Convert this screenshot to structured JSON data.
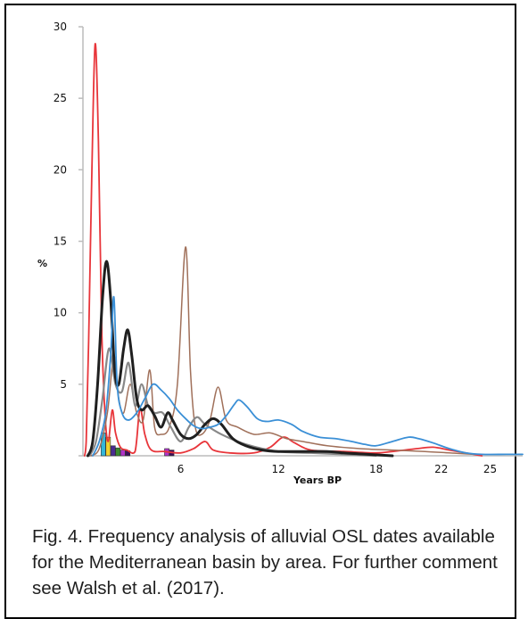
{
  "caption": "Fig. 4. Frequency analysis of alluvial OSL dates available for the Mediterranean basin by area. For further comment see Walsh et al. (2017).",
  "chart_data": {
    "type": "line",
    "xlabel": "Years BP",
    "ylabel": "%",
    "ylim": [
      0,
      30
    ],
    "xlim": [
      0,
      27
    ],
    "y_ticks": [
      0,
      5,
      10,
      15,
      20,
      25,
      30
    ],
    "y_tick_labels": [
      "",
      "5",
      "10",
      "15",
      "20",
      "25",
      "30"
    ],
    "x_ticks": [
      6,
      12,
      18,
      22,
      25
    ],
    "x_tick_labels": [
      "6",
      "12",
      "18",
      "22",
      "25"
    ],
    "grid": false,
    "legend": "none",
    "series": [
      {
        "color": "#e8353a",
        "width": 1.8,
        "points": [
          [
            0.1,
            0
          ],
          [
            0.2,
            1
          ],
          [
            0.35,
            8
          ],
          [
            0.55,
            20
          ],
          [
            0.75,
            28.8
          ],
          [
            0.95,
            22
          ],
          [
            1.15,
            9
          ],
          [
            1.35,
            3
          ],
          [
            1.55,
            1
          ],
          [
            1.8,
            3.2
          ],
          [
            2.0,
            1.6
          ],
          [
            2.3,
            0.6
          ],
          [
            2.7,
            0.4
          ],
          [
            3.2,
            0.3
          ],
          [
            3.5,
            3.3
          ],
          [
            3.8,
            1.5
          ],
          [
            4.2,
            0.4
          ],
          [
            5.0,
            0.3
          ],
          [
            6.0,
            0.2
          ],
          [
            6.8,
            0.5
          ],
          [
            7.5,
            1.0
          ],
          [
            8.0,
            0.4
          ],
          [
            9,
            0.2
          ],
          [
            10.5,
            0.2
          ],
          [
            11.5,
            0.6
          ],
          [
            12.3,
            1.3
          ],
          [
            13,
            0.9
          ],
          [
            14,
            0.4
          ],
          [
            16,
            0.3
          ],
          [
            18,
            0.2
          ],
          [
            19,
            0.3
          ],
          [
            20.5,
            0.5
          ],
          [
            21.5,
            0.6
          ],
          [
            22.5,
            0.4
          ],
          [
            23.5,
            0.2
          ],
          [
            24.5,
            0
          ]
        ]
      },
      {
        "color": "#a0705a",
        "width": 1.5,
        "points": [
          [
            0.5,
            0
          ],
          [
            1,
            0.5
          ],
          [
            1.5,
            3
          ],
          [
            1.9,
            7.0
          ],
          [
            2.2,
            4.0
          ],
          [
            2.5,
            3
          ],
          [
            2.9,
            5
          ],
          [
            3.3,
            3
          ],
          [
            3.7,
            2.5
          ],
          [
            4.1,
            6.0
          ],
          [
            4.4,
            2
          ],
          [
            4.8,
            1.5
          ],
          [
            5.3,
            2
          ],
          [
            5.8,
            5
          ],
          [
            6.3,
            14.6
          ],
          [
            6.6,
            6
          ],
          [
            6.9,
            2
          ],
          [
            7.3,
            1.5
          ],
          [
            7.8,
            2.5
          ],
          [
            8.3,
            4.8
          ],
          [
            8.8,
            2.5
          ],
          [
            9.5,
            2
          ],
          [
            10.5,
            1.5
          ],
          [
            11.5,
            1.6
          ],
          [
            12.5,
            1.2
          ],
          [
            13.5,
            1
          ],
          [
            15,
            0.7
          ],
          [
            17,
            0.5
          ],
          [
            19,
            0.4
          ],
          [
            21,
            0.3
          ],
          [
            22.5,
            0.2
          ],
          [
            24,
            0.1
          ]
        ]
      },
      {
        "color": "#888888",
        "width": 2.2,
        "points": [
          [
            0.4,
            0
          ],
          [
            0.8,
            1
          ],
          [
            1.2,
            4
          ],
          [
            1.6,
            7.5
          ],
          [
            2.0,
            5.0
          ],
          [
            2.4,
            4.5
          ],
          [
            2.8,
            6.5
          ],
          [
            3.2,
            3.5
          ],
          [
            3.6,
            5
          ],
          [
            4.0,
            3.5
          ],
          [
            4.4,
            3
          ],
          [
            4.9,
            3
          ],
          [
            5.4,
            2
          ],
          [
            6.0,
            1
          ],
          [
            6.5,
            2
          ],
          [
            7.0,
            2.7
          ],
          [
            7.5,
            2.2
          ],
          [
            8.5,
            1.5
          ],
          [
            10,
            0.8
          ],
          [
            12,
            0.3
          ],
          [
            14,
            0.2
          ],
          [
            16,
            0.1
          ],
          [
            18,
            0
          ]
        ]
      },
      {
        "color": "#1f1f1f",
        "width": 3.0,
        "points": [
          [
            0.3,
            0
          ],
          [
            0.6,
            1
          ],
          [
            0.9,
            5
          ],
          [
            1.2,
            11
          ],
          [
            1.45,
            13.6
          ],
          [
            1.7,
            11
          ],
          [
            1.95,
            6
          ],
          [
            2.2,
            5
          ],
          [
            2.5,
            7.5
          ],
          [
            2.75,
            8.8
          ],
          [
            3.0,
            7
          ],
          [
            3.3,
            4
          ],
          [
            3.6,
            3.2
          ],
          [
            4.0,
            3.5
          ],
          [
            4.4,
            2.8
          ],
          [
            4.8,
            2.0
          ],
          [
            5.2,
            3
          ],
          [
            5.5,
            2.5
          ],
          [
            6.0,
            1.5
          ],
          [
            6.5,
            1.2
          ],
          [
            7.0,
            1.5
          ],
          [
            7.5,
            2.2
          ],
          [
            8.0,
            2.6
          ],
          [
            8.5,
            2.2
          ],
          [
            9.2,
            1.2
          ],
          [
            10,
            0.7
          ],
          [
            11,
            0.4
          ],
          [
            12,
            0.3
          ],
          [
            13.5,
            0.3
          ],
          [
            15,
            0.3
          ],
          [
            16,
            0.2
          ],
          [
            17.5,
            0.1
          ],
          [
            19,
            0
          ]
        ]
      },
      {
        "color": "#3a8fd6",
        "width": 1.8,
        "points": [
          [
            0.6,
            0
          ],
          [
            1.0,
            1
          ],
          [
            1.4,
            3
          ],
          [
            1.7,
            7
          ],
          [
            1.9,
            11.1
          ],
          [
            2.1,
            5
          ],
          [
            2.4,
            3
          ],
          [
            2.8,
            2.5
          ],
          [
            3.3,
            3.0
          ],
          [
            3.8,
            4.0
          ],
          [
            4.3,
            5.0
          ],
          [
            4.8,
            4.6
          ],
          [
            5.3,
            4.0
          ],
          [
            5.8,
            3.2
          ],
          [
            6.3,
            2.6
          ],
          [
            6.8,
            2.1
          ],
          [
            7.3,
            1.9
          ],
          [
            7.8,
            2.0
          ],
          [
            8.3,
            2.2
          ],
          [
            8.8,
            2.8
          ],
          [
            9.3,
            3.6
          ],
          [
            9.6,
            3.9
          ],
          [
            10.1,
            3.4
          ],
          [
            10.7,
            2.6
          ],
          [
            11.3,
            2.4
          ],
          [
            12.0,
            2.5
          ],
          [
            12.8,
            2.2
          ],
          [
            13.5,
            1.7
          ],
          [
            14.5,
            1.3
          ],
          [
            15.5,
            1.2
          ],
          [
            16.5,
            1.0
          ],
          [
            17.3,
            0.8
          ],
          [
            18.0,
            0.7
          ],
          [
            19.0,
            1.0
          ],
          [
            20.0,
            1.3
          ],
          [
            20.6,
            1.2
          ],
          [
            21.5,
            0.9
          ],
          [
            22.5,
            0.5
          ],
          [
            23.5,
            0.2
          ],
          [
            24.5,
            0.1
          ],
          [
            26,
            0.1
          ],
          [
            27,
            0.1
          ]
        ]
      }
    ],
    "bars": [
      {
        "x": 1.25,
        "value": 1.6,
        "color": "#34b7d9"
      },
      {
        "x": 1.55,
        "value": 1.3,
        "color": "#f2d22e"
      },
      {
        "x": 1.85,
        "value": 0.7,
        "color": "#4b2c91"
      },
      {
        "x": 2.15,
        "value": 0.55,
        "color": "#3a8a2e"
      },
      {
        "x": 2.45,
        "value": 0.4,
        "color": "#b033c7"
      },
      {
        "x": 2.75,
        "value": 0.35,
        "color": "#3d0f5b"
      },
      {
        "x": 5.15,
        "value": 0.5,
        "color": "#b033c7"
      },
      {
        "x": 5.45,
        "value": 0.4,
        "color": "#3d0f5b"
      }
    ]
  }
}
